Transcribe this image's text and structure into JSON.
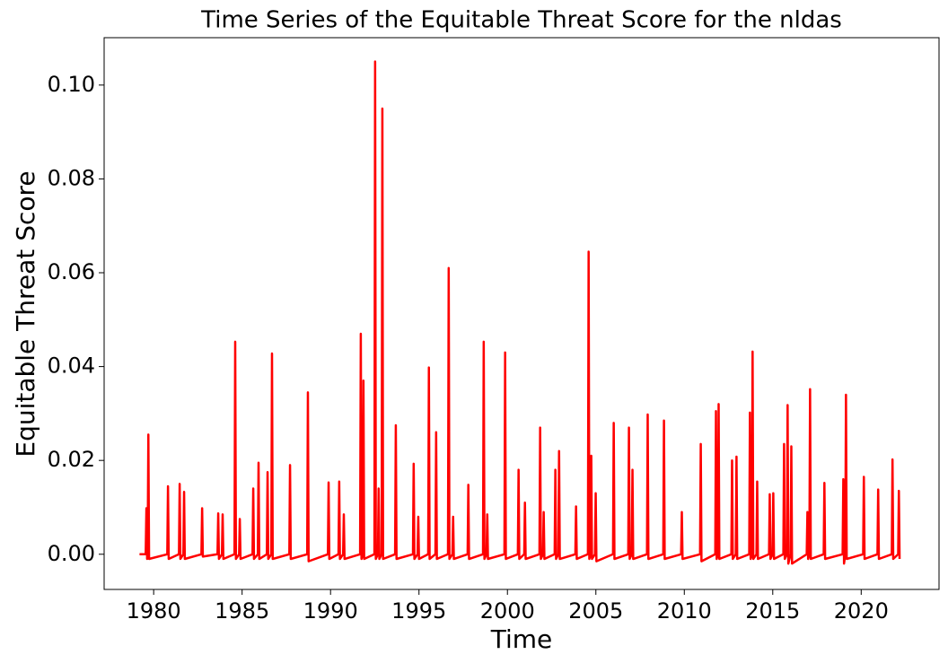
{
  "chart_data": {
    "type": "line",
    "title": "Time Series of the Equitable Threat Score for the nldas",
    "x_label": "Time",
    "y_label": "Equitable Threat Score",
    "color": "#ff0000",
    "x": [
      1979.2,
      1979.55,
      1979.59,
      1979.63,
      1979.66,
      1979.7,
      1979.74,
      1980.77,
      1980.81,
      1980.85,
      1981.43,
      1981.47,
      1981.51,
      1981.68,
      1981.72,
      1981.76,
      1982.7,
      1982.74,
      1982.78,
      1983.61,
      1983.65,
      1983.69,
      1983.86,
      1983.9,
      1983.94,
      1984.57,
      1984.61,
      1984.65,
      1984.83,
      1984.87,
      1984.91,
      1985.59,
      1985.63,
      1985.67,
      1985.89,
      1985.93,
      1985.97,
      1986.4,
      1986.44,
      1986.48,
      1986.65,
      1986.69,
      1986.73,
      1987.67,
      1987.71,
      1987.75,
      1988.68,
      1988.72,
      1988.76,
      1989.85,
      1989.89,
      1989.93,
      1990.45,
      1990.49,
      1990.53,
      1990.71,
      1990.75,
      1990.79,
      1991.67,
      1991.71,
      1991.75,
      1991.82,
      1991.86,
      1991.9,
      1992.48,
      1992.52,
      1992.56,
      1992.68,
      1992.72,
      1992.76,
      1992.89,
      1992.93,
      1992.97,
      1993.65,
      1993.69,
      1993.73,
      1994.66,
      1994.7,
      1994.74,
      1994.92,
      1994.96,
      1995.0,
      1995.52,
      1995.56,
      1995.6,
      1995.93,
      1995.97,
      1996.01,
      1996.64,
      1996.68,
      1996.72,
      1996.89,
      1996.93,
      1996.97,
      1997.75,
      1997.79,
      1997.83,
      1998.62,
      1998.66,
      1998.7,
      1998.82,
      1998.86,
      1998.9,
      1999.83,
      1999.87,
      1999.91,
      2000.59,
      2000.63,
      2000.67,
      2000.95,
      2000.99,
      2001.03,
      2001.81,
      2001.85,
      2001.89,
      2002.01,
      2002.05,
      2002.09,
      2002.67,
      2002.71,
      2002.75,
      2002.88,
      2002.92,
      2002.96,
      2003.84,
      2003.88,
      2003.92,
      2004.55,
      2004.59,
      2004.63,
      2004.7,
      2004.74,
      2004.78,
      2004.95,
      2004.99,
      2005.03,
      2005.97,
      2006.01,
      2006.05,
      2006.83,
      2006.87,
      2006.91,
      2007.03,
      2007.07,
      2007.11,
      2007.89,
      2007.93,
      2007.97,
      2008.81,
      2008.85,
      2008.89,
      2009.82,
      2009.86,
      2009.9,
      2010.89,
      2010.93,
      2010.97,
      2011.75,
      2011.79,
      2011.83,
      2011.9,
      2011.94,
      2011.98,
      2012.66,
      2012.7,
      2012.74,
      2012.91,
      2012.95,
      2012.99,
      2013.67,
      2013.71,
      2013.75,
      2013.82,
      2013.86,
      2013.9,
      2014.08,
      2014.12,
      2014.16,
      2014.79,
      2014.83,
      2014.87,
      2014.99,
      2015.03,
      2015.07,
      2015.6,
      2015.64,
      2015.68,
      2015.8,
      2015.84,
      2015.88,
      2016.01,
      2016.05,
      2016.09,
      2016.92,
      2016.96,
      2017.0,
      2017.07,
      2017.11,
      2017.15,
      2017.88,
      2017.92,
      2017.96,
      2018.95,
      2018.99,
      2019.03,
      2019.1,
      2019.14,
      2019.18,
      2020.11,
      2020.15,
      2020.19,
      2020.92,
      2020.96,
      2021.0,
      2021.73,
      2021.77,
      2021.81,
      2022.09,
      2022.13,
      2022.17
    ],
    "values": [
      0,
      0,
      0.0098,
      -0.001,
      0,
      0.0255,
      -0.001,
      0,
      0.0145,
      -0.001,
      0,
      0.015,
      -0.001,
      0,
      0.0133,
      -0.001,
      0,
      0.0098,
      -0.0005,
      0,
      0.0087,
      -0.001,
      0,
      0.0085,
      -0.001,
      0,
      0.0453,
      -0.001,
      0,
      0.0075,
      -0.001,
      0,
      0.014,
      -0.001,
      0,
      0.0195,
      -0.001,
      0,
      0.0175,
      -0.001,
      0,
      0.0428,
      -0.001,
      0,
      0.019,
      -0.001,
      0,
      0.0345,
      -0.0015,
      0,
      0.0153,
      -0.001,
      0,
      0.0155,
      -0.001,
      0,
      0.0085,
      -0.001,
      0,
      0.047,
      -0.001,
      0,
      0.037,
      -0.001,
      0,
      0.105,
      -0.001,
      0,
      0.014,
      -0.001,
      0,
      0.095,
      -0.001,
      0,
      0.0275,
      -0.001,
      0,
      0.0193,
      -0.001,
      0,
      0.008,
      -0.001,
      0,
      0.0398,
      -0.001,
      0,
      0.026,
      -0.001,
      0,
      0.061,
      -0.001,
      0,
      0.008,
      -0.001,
      0,
      0.0148,
      -0.001,
      0,
      0.0453,
      -0.001,
      0,
      0.0085,
      -0.001,
      0,
      0.043,
      -0.001,
      0,
      0.018,
      -0.001,
      0,
      0.011,
      -0.001,
      0,
      0.027,
      -0.001,
      0,
      0.009,
      -0.001,
      0,
      0.018,
      -0.001,
      0,
      0.022,
      -0.001,
      0,
      0.0102,
      -0.001,
      0,
      0.0645,
      -0.001,
      0,
      0.021,
      -0.001,
      0,
      0.013,
      -0.0015,
      0,
      0.028,
      -0.001,
      0,
      0.027,
      -0.001,
      0,
      0.018,
      -0.001,
      0,
      0.0298,
      -0.001,
      0,
      0.0285,
      -0.001,
      0,
      0.009,
      -0.001,
      0,
      0.0235,
      -0.0015,
      0,
      0.0305,
      -0.001,
      0,
      0.032,
      -0.001,
      0,
      0.02,
      -0.001,
      0,
      0.0208,
      -0.001,
      0,
      0.0302,
      -0.001,
      0,
      0.0432,
      -0.001,
      0,
      0.0155,
      -0.001,
      0,
      0.0128,
      -0.001,
      0,
      0.013,
      -0.001,
      0,
      0.0235,
      -0.001,
      0,
      0.0318,
      -0.002,
      0,
      0.023,
      -0.002,
      0,
      0.009,
      -0.001,
      0,
      0.0352,
      -0.001,
      0,
      0.0152,
      -0.001,
      0,
      0.016,
      -0.002,
      0,
      0.034,
      -0.001,
      0,
      0.0165,
      -0.001,
      0,
      0.0138,
      -0.001,
      0,
      0.0202,
      -0.001,
      0,
      0.0135,
      -0.001
    ],
    "xlim": [
      1977.2,
      2024.4
    ],
    "ylim": [
      -0.0075,
      0.1101
    ],
    "xticks": [
      1980,
      1985,
      1990,
      1995,
      2000,
      2005,
      2010,
      2015,
      2020
    ],
    "yticks": [
      {
        "value": 0,
        "label": "0.00"
      },
      0.02,
      0.04,
      0.06,
      0.08,
      {
        "value": 0.1,
        "label": "0.10"
      }
    ]
  }
}
